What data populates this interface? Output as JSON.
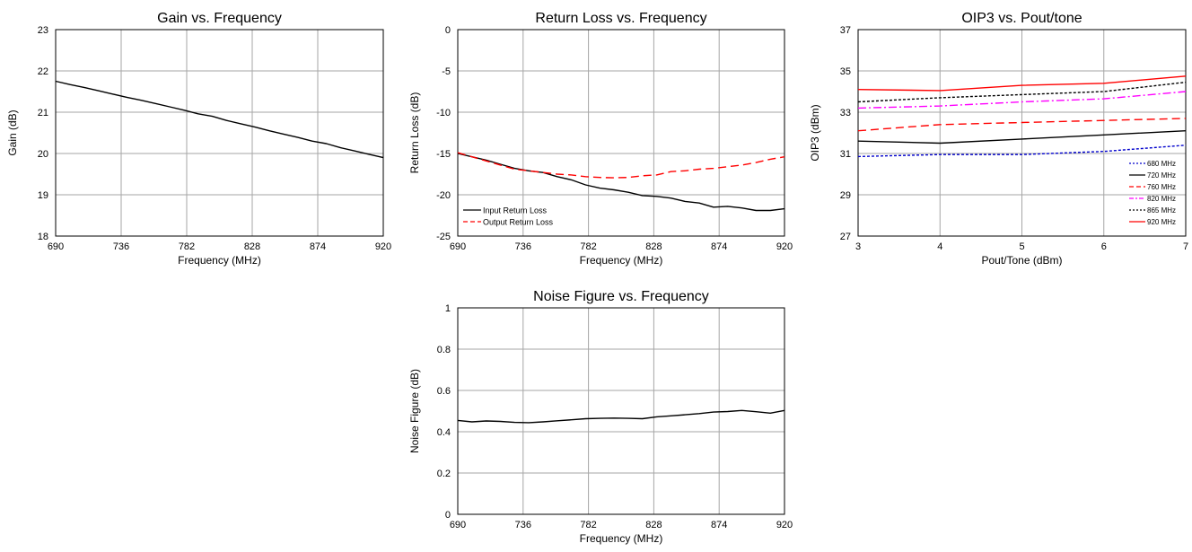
{
  "chart_data": [
    {
      "type": "line",
      "title": "Gain vs. Frequency",
      "xlabel": "Frequency (MHz)",
      "ylabel": "Gain (dB)",
      "xlim": [
        690,
        920
      ],
      "ylim": [
        18,
        23
      ],
      "xticks": [
        690,
        736,
        782,
        828,
        874,
        920
      ],
      "yticks": [
        18,
        19,
        20,
        21,
        22,
        23
      ],
      "grid": true,
      "legend": null,
      "series": [
        {
          "color": "#000000",
          "dash": "solid",
          "x": [
            690,
            700,
            710,
            720,
            730,
            740,
            750,
            760,
            770,
            780,
            790,
            800,
            810,
            820,
            830,
            840,
            850,
            860,
            870,
            880,
            890,
            900,
            910,
            920
          ],
          "y": [
            21.75,
            21.67,
            21.6,
            21.52,
            21.44,
            21.36,
            21.29,
            21.21,
            21.13,
            21.05,
            20.96,
            20.9,
            20.8,
            20.72,
            20.64,
            20.55,
            20.47,
            20.39,
            20.3,
            20.24,
            20.14,
            20.06,
            19.98,
            19.9
          ]
        }
      ]
    },
    {
      "type": "line",
      "title": "Return Loss vs. Frequency",
      "xlabel": "Frequency (MHz)",
      "ylabel": "Return Loss (dB)",
      "xlim": [
        690,
        920
      ],
      "ylim": [
        -25,
        0
      ],
      "xticks": [
        690,
        736,
        782,
        828,
        874,
        920
      ],
      "yticks": [
        -25,
        -20,
        -15,
        -10,
        -5,
        0
      ],
      "grid": true,
      "legend": "bottom-left",
      "series": [
        {
          "name": "Input Return Loss",
          "color": "#000000",
          "dash": "solid",
          "x": [
            690,
            700,
            710,
            720,
            730,
            740,
            750,
            760,
            770,
            780,
            790,
            800,
            810,
            820,
            830,
            840,
            850,
            860,
            870,
            880,
            890,
            900,
            910,
            920
          ],
          "y": [
            -15,
            -15.4,
            -15.8,
            -16.3,
            -16.8,
            -17.1,
            -17.3,
            -17.8,
            -18.2,
            -18.8,
            -19.2,
            -19.4,
            -19.7,
            -20.1,
            -20.2,
            -20.4,
            -20.8,
            -21,
            -21.5,
            -21.4,
            -21.6,
            -21.9,
            -21.9,
            -21.7
          ]
        },
        {
          "name": "Output Return Loss",
          "color": "#ff0000",
          "dash": "dashed",
          "x": [
            690,
            700,
            710,
            720,
            730,
            740,
            750,
            760,
            770,
            780,
            790,
            800,
            810,
            820,
            830,
            840,
            850,
            860,
            870,
            880,
            890,
            900,
            910,
            920
          ],
          "y": [
            -14.9,
            -15.4,
            -15.9,
            -16.4,
            -16.9,
            -17.1,
            -17.3,
            -17.5,
            -17.6,
            -17.8,
            -17.9,
            -17.95,
            -17.9,
            -17.7,
            -17.6,
            -17.2,
            -17.1,
            -16.9,
            -16.8,
            -16.6,
            -16.4,
            -16.1,
            -15.7,
            -15.4
          ]
        }
      ]
    },
    {
      "type": "line",
      "title": "OIP3 vs. Pout/tone",
      "xlabel": "Pout/Tone (dBm)",
      "ylabel": "OIP3 (dBm)",
      "xlim": [
        3,
        7
      ],
      "ylim": [
        27,
        37
      ],
      "xticks": [
        3,
        4,
        5,
        6,
        7
      ],
      "yticks": [
        27,
        29,
        31,
        33,
        35,
        37
      ],
      "grid": true,
      "legend": "bottom-right",
      "series": [
        {
          "name": "680 MHz",
          "color": "#0000cc",
          "dash": "dotted",
          "x": [
            3,
            4,
            5,
            6,
            7
          ],
          "y": [
            30.85,
            30.95,
            30.95,
            31.1,
            31.4
          ]
        },
        {
          "name": "720 MHz",
          "color": "#000000",
          "dash": "solid",
          "x": [
            3,
            4,
            5,
            6,
            7
          ],
          "y": [
            31.6,
            31.5,
            31.7,
            31.9,
            32.1
          ]
        },
        {
          "name": "760 MHz",
          "color": "#ff0000",
          "dash": "dashed",
          "x": [
            3,
            4,
            5,
            6,
            7
          ],
          "y": [
            32.1,
            32.4,
            32.5,
            32.6,
            32.7
          ]
        },
        {
          "name": "820 MHz",
          "color": "#ff00ff",
          "dash": "dashdot",
          "x": [
            3,
            4,
            5,
            6,
            7
          ],
          "y": [
            33.2,
            33.3,
            33.5,
            33.65,
            34
          ]
        },
        {
          "name": "865 MHz",
          "color": "#000000",
          "dash": "dotted",
          "x": [
            3,
            4,
            5,
            6,
            7
          ],
          "y": [
            33.5,
            33.7,
            33.85,
            34,
            34.45
          ]
        },
        {
          "name": "920 MHz",
          "color": "#ff0000",
          "dash": "solid",
          "x": [
            3,
            4,
            5,
            6,
            7
          ],
          "y": [
            34.1,
            34.05,
            34.3,
            34.4,
            34.75
          ]
        }
      ]
    },
    {
      "type": "line",
      "title": "Noise Figure vs. Frequency",
      "xlabel": "Frequency (MHz)",
      "ylabel": "Noise Figure (dB)",
      "xlim": [
        690,
        920
      ],
      "ylim": [
        0,
        1
      ],
      "xticks": [
        690,
        736,
        782,
        828,
        874,
        920
      ],
      "yticks": [
        0,
        0.2,
        0.4,
        0.6,
        0.8,
        1
      ],
      "grid": true,
      "legend": null,
      "series": [
        {
          "color": "#000000",
          "dash": "solid",
          "x": [
            690,
            700,
            710,
            720,
            730,
            740,
            750,
            760,
            770,
            780,
            790,
            800,
            810,
            820,
            830,
            840,
            850,
            860,
            870,
            880,
            890,
            900,
            910,
            920
          ],
          "y": [
            0.455,
            0.448,
            0.452,
            0.45,
            0.445,
            0.444,
            0.448,
            0.453,
            0.458,
            0.463,
            0.465,
            0.466,
            0.465,
            0.463,
            0.472,
            0.477,
            0.482,
            0.488,
            0.495,
            0.498,
            0.503,
            0.497,
            0.49,
            0.503
          ]
        }
      ]
    }
  ]
}
